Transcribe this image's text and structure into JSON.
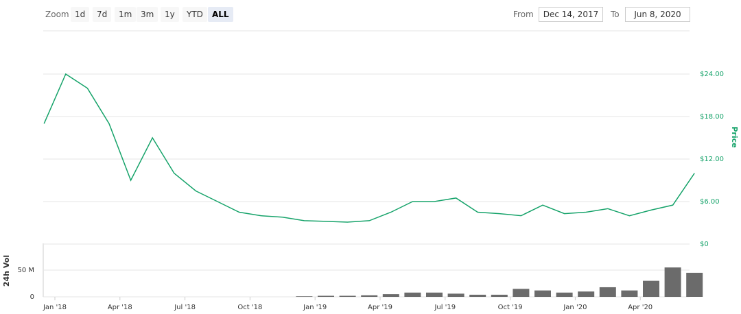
{
  "controls": {
    "zoom_label": "Zoom",
    "buttons": [
      "1d",
      "7d",
      "1m",
      "3m",
      "1y",
      "YTD",
      "ALL"
    ],
    "active": "ALL",
    "from_label": "From",
    "from_value": "Dec 14, 2017",
    "to_label": "To",
    "to_value": "Jun 8, 2020"
  },
  "chart_data": [
    {
      "type": "line",
      "y_label": "Price",
      "color": "#16a36a",
      "x": [
        "2017-12",
        "2018-01",
        "2018-02",
        "2018-03",
        "2018-04",
        "2018-05",
        "2018-06",
        "2018-07",
        "2018-08",
        "2018-09",
        "2018-10",
        "2018-11",
        "2018-12",
        "2019-01",
        "2019-02",
        "2019-03",
        "2019-04",
        "2019-05",
        "2019-06",
        "2019-07",
        "2019-08",
        "2019-09",
        "2019-10",
        "2019-11",
        "2019-12",
        "2020-01",
        "2020-02",
        "2020-03",
        "2020-04",
        "2020-05",
        "2020-06"
      ],
      "values": [
        17,
        24,
        22,
        17,
        9,
        15,
        10,
        7.5,
        6,
        4.5,
        4,
        3.8,
        3.3,
        3.2,
        3.1,
        3.3,
        4.5,
        6,
        6,
        6.5,
        4.5,
        4.3,
        4,
        5.5,
        4.3,
        4.5,
        5,
        4,
        4.8,
        5.5,
        10
      ],
      "ylim": [
        0,
        30
      ],
      "yticks": [
        {
          "value": 0,
          "label": "$0"
        },
        {
          "value": 6,
          "label": "$6.00"
        },
        {
          "value": 12,
          "label": "$12.00"
        },
        {
          "value": 18,
          "label": "$18.00"
        },
        {
          "value": 24,
          "label": "$24.00"
        }
      ],
      "grid": true
    },
    {
      "type": "bar",
      "y_label": "24h Vol",
      "color": "#6b6b6b",
      "x": [
        "2017-12",
        "2018-01",
        "2018-02",
        "2018-03",
        "2018-04",
        "2018-05",
        "2018-06",
        "2018-07",
        "2018-08",
        "2018-09",
        "2018-10",
        "2018-11",
        "2018-12",
        "2019-01",
        "2019-02",
        "2019-03",
        "2019-04",
        "2019-05",
        "2019-06",
        "2019-07",
        "2019-08",
        "2019-09",
        "2019-10",
        "2019-11",
        "2019-12",
        "2020-01",
        "2020-02",
        "2020-03",
        "2020-04",
        "2020-05",
        "2020-06"
      ],
      "values": [
        0,
        0,
        0,
        0,
        0,
        0,
        0,
        0,
        0,
        0,
        0,
        0,
        1,
        2,
        2,
        3,
        5,
        8,
        8,
        6,
        4,
        4,
        15,
        12,
        8,
        10,
        18,
        12,
        30,
        55,
        45
      ],
      "ylim": [
        0,
        100
      ],
      "yticks": [
        0,
        {
          "value": 50,
          "label": "50 M"
        }
      ],
      "xticks": [
        {
          "value": "2018-01",
          "label": "Jan '18"
        },
        {
          "value": "2018-04",
          "label": "Apr '18"
        },
        {
          "value": "2018-07",
          "label": "Jul '18"
        },
        {
          "value": "2018-10",
          "label": "Oct '18"
        },
        {
          "value": "2019-01",
          "label": "Jan '19"
        },
        {
          "value": "2019-04",
          "label": "Apr '19"
        },
        {
          "value": "2019-07",
          "label": "Jul '19"
        },
        {
          "value": "2019-10",
          "label": "Oct '19"
        },
        {
          "value": "2020-01",
          "label": "Jan '20"
        },
        {
          "value": "2020-04",
          "label": "Apr '20"
        }
      ],
      "grid": true
    }
  ]
}
